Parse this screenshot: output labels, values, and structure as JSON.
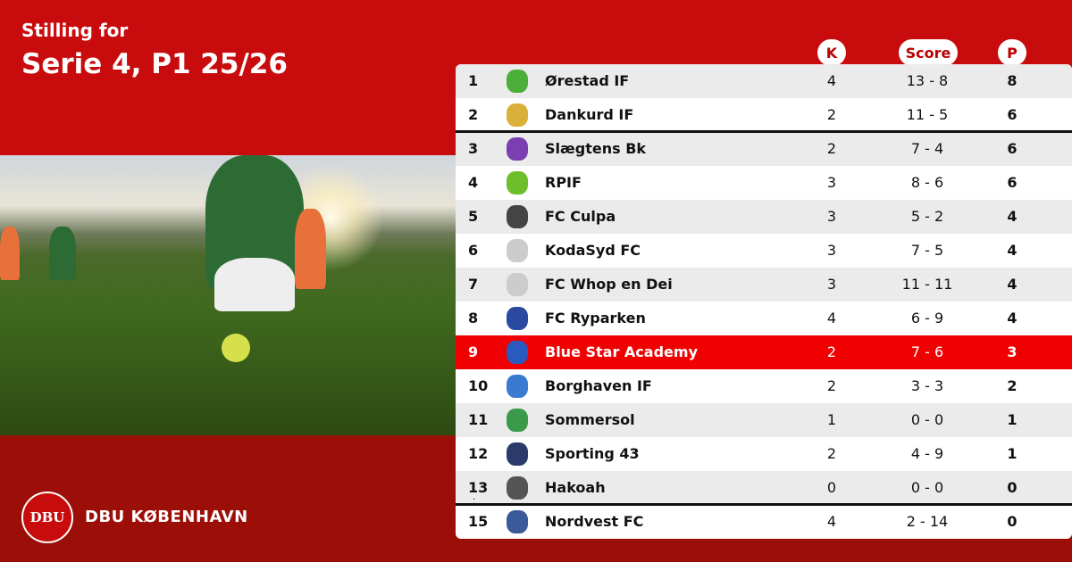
{
  "header": {
    "subtitle": "Stilling for",
    "title": "Serie 4, P1 25/26"
  },
  "brand": {
    "name": "DBU KØBENHAVN",
    "logo_text": "DBU"
  },
  "columns": {
    "k": "K",
    "score": "Score",
    "p": "P"
  },
  "colors": {
    "primary_red": "#c80c0e",
    "dark_red": "#9b0f08",
    "highlight": "#f00000"
  },
  "rows": [
    {
      "rank": "1",
      "name": "Ørestad IF",
      "k": "4",
      "score": "13 - 8",
      "p": "8",
      "crest": "#4caf3a"
    },
    {
      "rank": "2",
      "name": "Dankurd IF",
      "k": "2",
      "score": "11 - 5",
      "p": "6",
      "crest": "#d9b13a"
    },
    {
      "rank": "3",
      "name": "Slægtens Bk",
      "k": "2",
      "score": "7 - 4",
      "p": "6",
      "crest": "#7a3fb0"
    },
    {
      "rank": "4",
      "name": "RPIF",
      "k": "3",
      "score": "8 - 6",
      "p": "6",
      "crest": "#6cbf2a"
    },
    {
      "rank": "5",
      "name": "FC Culpa",
      "k": "3",
      "score": "5 - 2",
      "p": "4",
      "crest": "#444444"
    },
    {
      "rank": "6",
      "name": "KodaSyd FC",
      "k": "3",
      "score": "7 - 5",
      "p": "4",
      "crest": "#cccccc"
    },
    {
      "rank": "7",
      "name": "FC Whop en Dei",
      "k": "3",
      "score": "11 - 11",
      "p": "4",
      "crest": "#cccccc"
    },
    {
      "rank": "8",
      "name": "FC Ryparken",
      "k": "4",
      "score": "6 - 9",
      "p": "4",
      "crest": "#2a4aa0"
    },
    {
      "rank": "9",
      "name": "Blue Star Academy",
      "k": "2",
      "score": "7 - 6",
      "p": "3",
      "crest": "#2a5ac0"
    },
    {
      "rank": "10",
      "name": "Borghaven IF",
      "k": "2",
      "score": "3 - 3",
      "p": "2",
      "crest": "#3a7ad0"
    },
    {
      "rank": "11",
      "name": "Sommersol",
      "k": "1",
      "score": "0 - 0",
      "p": "1",
      "crest": "#3a9a4a"
    },
    {
      "rank": "12",
      "name": "Sporting 43",
      "k": "2",
      "score": "4 - 9",
      "p": "1",
      "crest": "#2a3a6a"
    },
    {
      "rank": "13",
      "name": "Hakoah",
      "k": "0",
      "score": "0 - 0",
      "p": "0",
      "crest": "#555555"
    },
    {
      "rank": "15",
      "name": "Nordvest FC",
      "k": "4",
      "score": "2 - 14",
      "p": "0",
      "crest": "#3a5a9a"
    }
  ]
}
